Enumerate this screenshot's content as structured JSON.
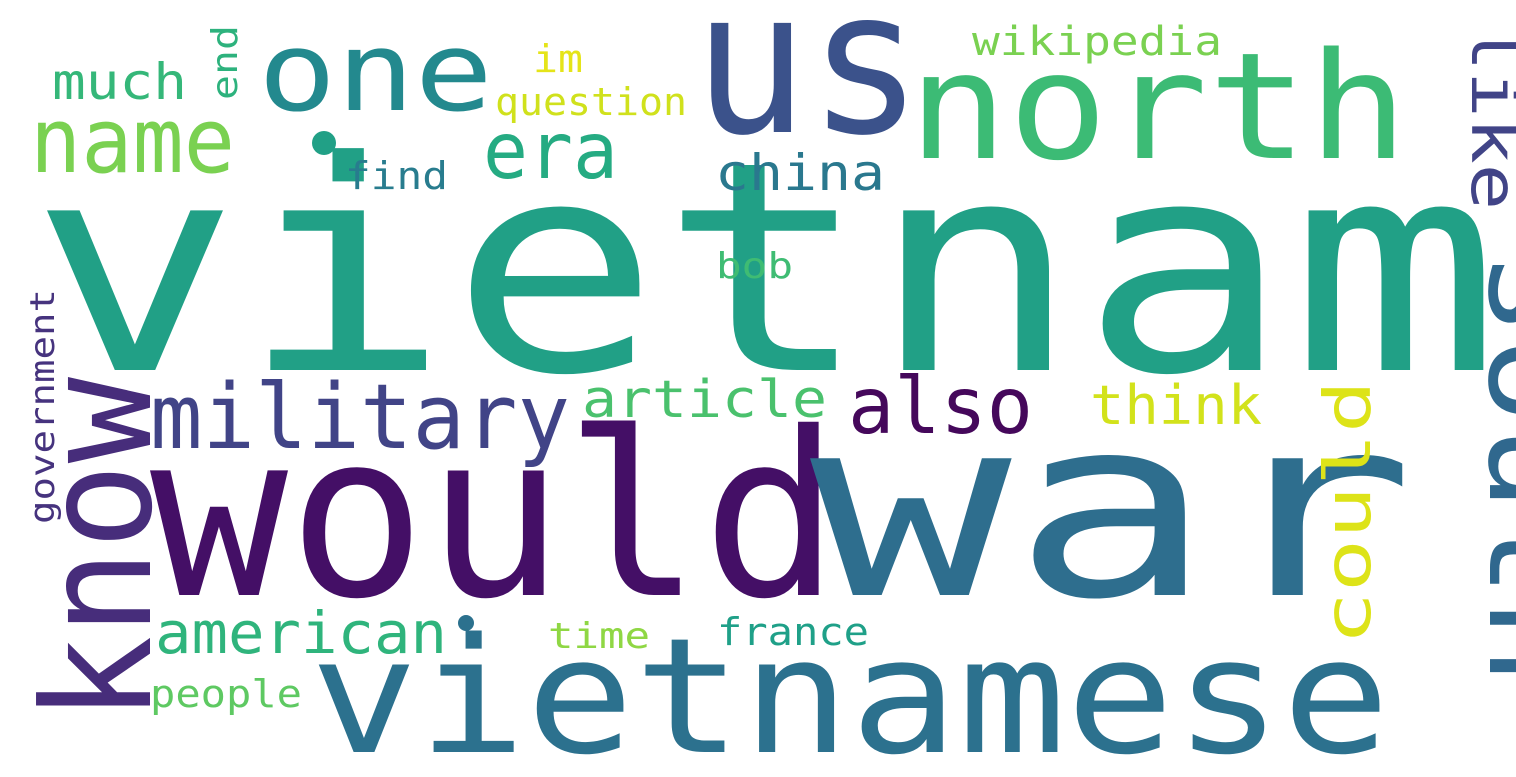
{
  "words": [
    {
      "text": "vietnam",
      "color": "#21a086"
    },
    {
      "text": "would",
      "color": "#440f66"
    },
    {
      "text": "war",
      "color": "#2e6e8e"
    },
    {
      "text": "us",
      "color": "#3b528b"
    },
    {
      "text": "vietnamese",
      "color": "#2c718e"
    },
    {
      "text": "north",
      "color": "#3cbb75"
    },
    {
      "text": "south",
      "color": "#30688e"
    },
    {
      "text": "know",
      "color": "#472d7b"
    },
    {
      "text": "one",
      "color": "#23898e"
    },
    {
      "text": "military",
      "color": "#414487"
    },
    {
      "text": "name",
      "color": "#7ad151"
    },
    {
      "text": "also",
      "color": "#45085b"
    },
    {
      "text": "era",
      "color": "#25ab82"
    },
    {
      "text": "american",
      "color": "#2fb47c"
    },
    {
      "text": "like",
      "color": "#414487"
    },
    {
      "text": "could",
      "color": "#dde318"
    },
    {
      "text": "china",
      "color": "#2a788e"
    },
    {
      "text": "think",
      "color": "#d2e21b"
    },
    {
      "text": "article",
      "color": "#4ac16d"
    },
    {
      "text": "much",
      "color": "#35b779"
    },
    {
      "text": "wikipedia",
      "color": "#7ad151"
    },
    {
      "text": "question",
      "color": "#d0e11c"
    },
    {
      "text": "find",
      "color": "#287c8e"
    },
    {
      "text": "end",
      "color": "#2db27d"
    },
    {
      "text": "im",
      "color": "#e5e419"
    },
    {
      "text": "bob",
      "color": "#3fbc73"
    },
    {
      "text": "government",
      "color": "#46337e"
    },
    {
      "text": "time",
      "color": "#8fd744"
    },
    {
      "text": "france",
      "color": "#1fa088"
    },
    {
      "text": "people",
      "color": "#5ec962"
    },
    {
      "dot": true,
      "color": "#21a086"
    },
    {
      "dot": true,
      "color": "#2c718e"
    }
  ]
}
